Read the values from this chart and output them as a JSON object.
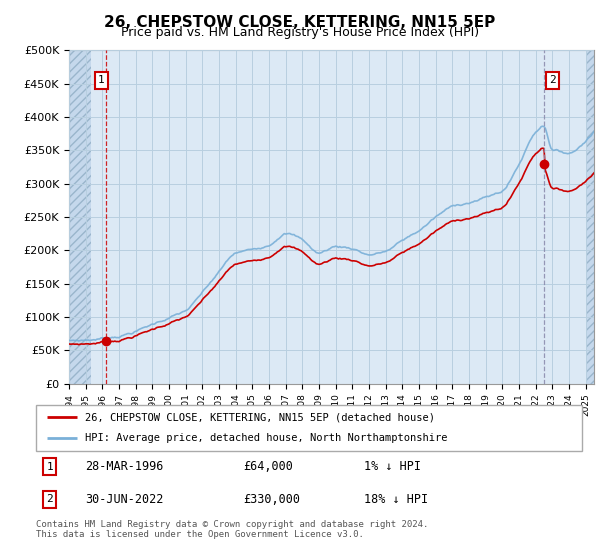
{
  "title": "26, CHEPSTOW CLOSE, KETTERING, NN15 5EP",
  "subtitle": "Price paid vs. HM Land Registry's House Price Index (HPI)",
  "ylabel_ticks": [
    "£0",
    "£50K",
    "£100K",
    "£150K",
    "£200K",
    "£250K",
    "£300K",
    "£350K",
    "£400K",
    "£450K",
    "£500K"
  ],
  "ytick_values": [
    0,
    50000,
    100000,
    150000,
    200000,
    250000,
    300000,
    350000,
    400000,
    450000,
    500000
  ],
  "ylim": [
    0,
    500000
  ],
  "xlim_start": 1994.0,
  "xlim_end": 2025.5,
  "hpi_color": "#7ab0d8",
  "price_color": "#cc0000",
  "sale1_date": 1996.24,
  "sale1_price": 64000,
  "sale2_date": 2022.5,
  "sale2_price": 330000,
  "legend_line1": "26, CHEPSTOW CLOSE, KETTERING, NN15 5EP (detached house)",
  "legend_line2": "HPI: Average price, detached house, North Northamptonshire",
  "table_row1_date": "28-MAR-1996",
  "table_row1_price": "£64,000",
  "table_row1_hpi": "1% ↓ HPI",
  "table_row2_date": "30-JUN-2022",
  "table_row2_price": "£330,000",
  "table_row2_hpi": "18% ↓ HPI",
  "footnote": "Contains HM Land Registry data © Crown copyright and database right 2024.\nThis data is licensed under the Open Government Licence v3.0.",
  "background_plot": "#dce9f5",
  "background_hatch": "#c5d8ec",
  "grid_color": "#b8cfe0",
  "title_fontsize": 11,
  "subtitle_fontsize": 9
}
